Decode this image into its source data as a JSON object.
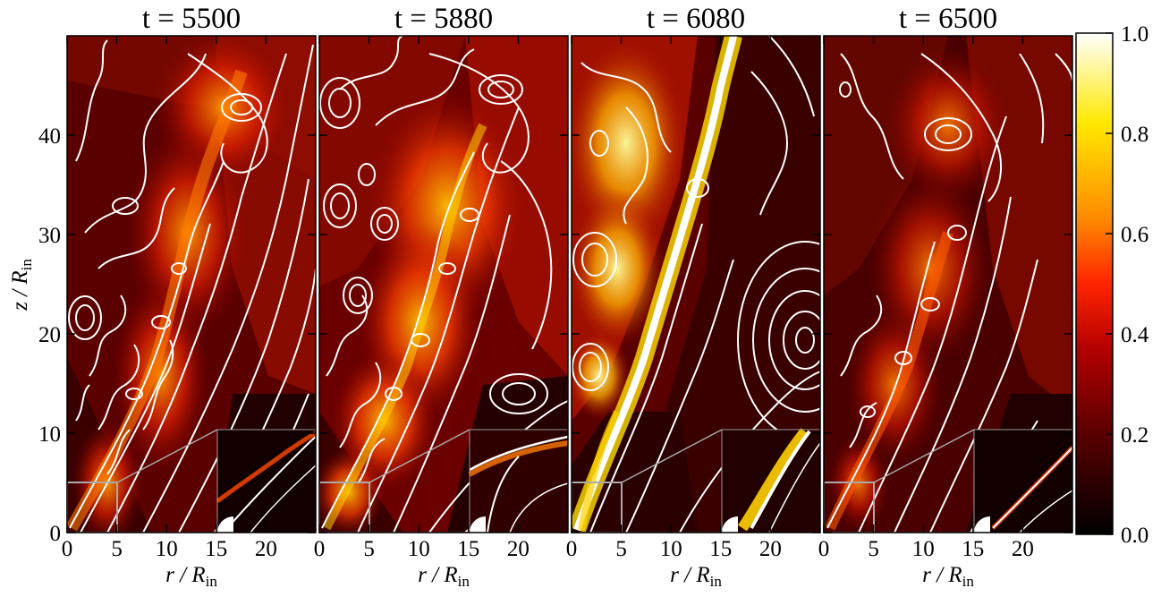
{
  "chart_data": {
    "type": "heatmap",
    "panels": [
      {
        "title": "t = 5500"
      },
      {
        "title": "t = 5880"
      },
      {
        "title": "t = 6080"
      },
      {
        "title": "t = 6500"
      }
    ],
    "xlabel": "r / R",
    "xlabel_sub": "in",
    "ylabel": "z / R",
    "ylabel_sub": "in",
    "xticks": [
      0,
      5,
      10,
      15,
      20
    ],
    "xtick_labels": [
      "0",
      "5",
      "10",
      "15",
      "20"
    ],
    "yticks": [
      0,
      10,
      20,
      30,
      40
    ],
    "ytick_labels": [
      "0",
      "10",
      "20",
      "30",
      "40"
    ],
    "xlim": [
      0,
      25
    ],
    "ylim": [
      0,
      50
    ],
    "colorbar": {
      "ticks": [
        0.0,
        0.2,
        0.4,
        0.6,
        0.8,
        1.0
      ],
      "tick_labels": [
        "0.0",
        "0.2",
        "0.4",
        "0.6",
        "0.8",
        "1.0"
      ],
      "range": [
        0,
        1
      ],
      "colormap": "hot"
    },
    "overlay": "white contour lines",
    "inset": {
      "xlim": [
        0,
        5
      ],
      "ylim": [
        0,
        5
      ]
    }
  },
  "colors": {
    "cmap_stops": [
      "#000000",
      "#5a0000",
      "#b40000",
      "#ff2400",
      "#ff8a00",
      "#ffe800",
      "#ffffff"
    ],
    "contour": "#ffffff"
  }
}
